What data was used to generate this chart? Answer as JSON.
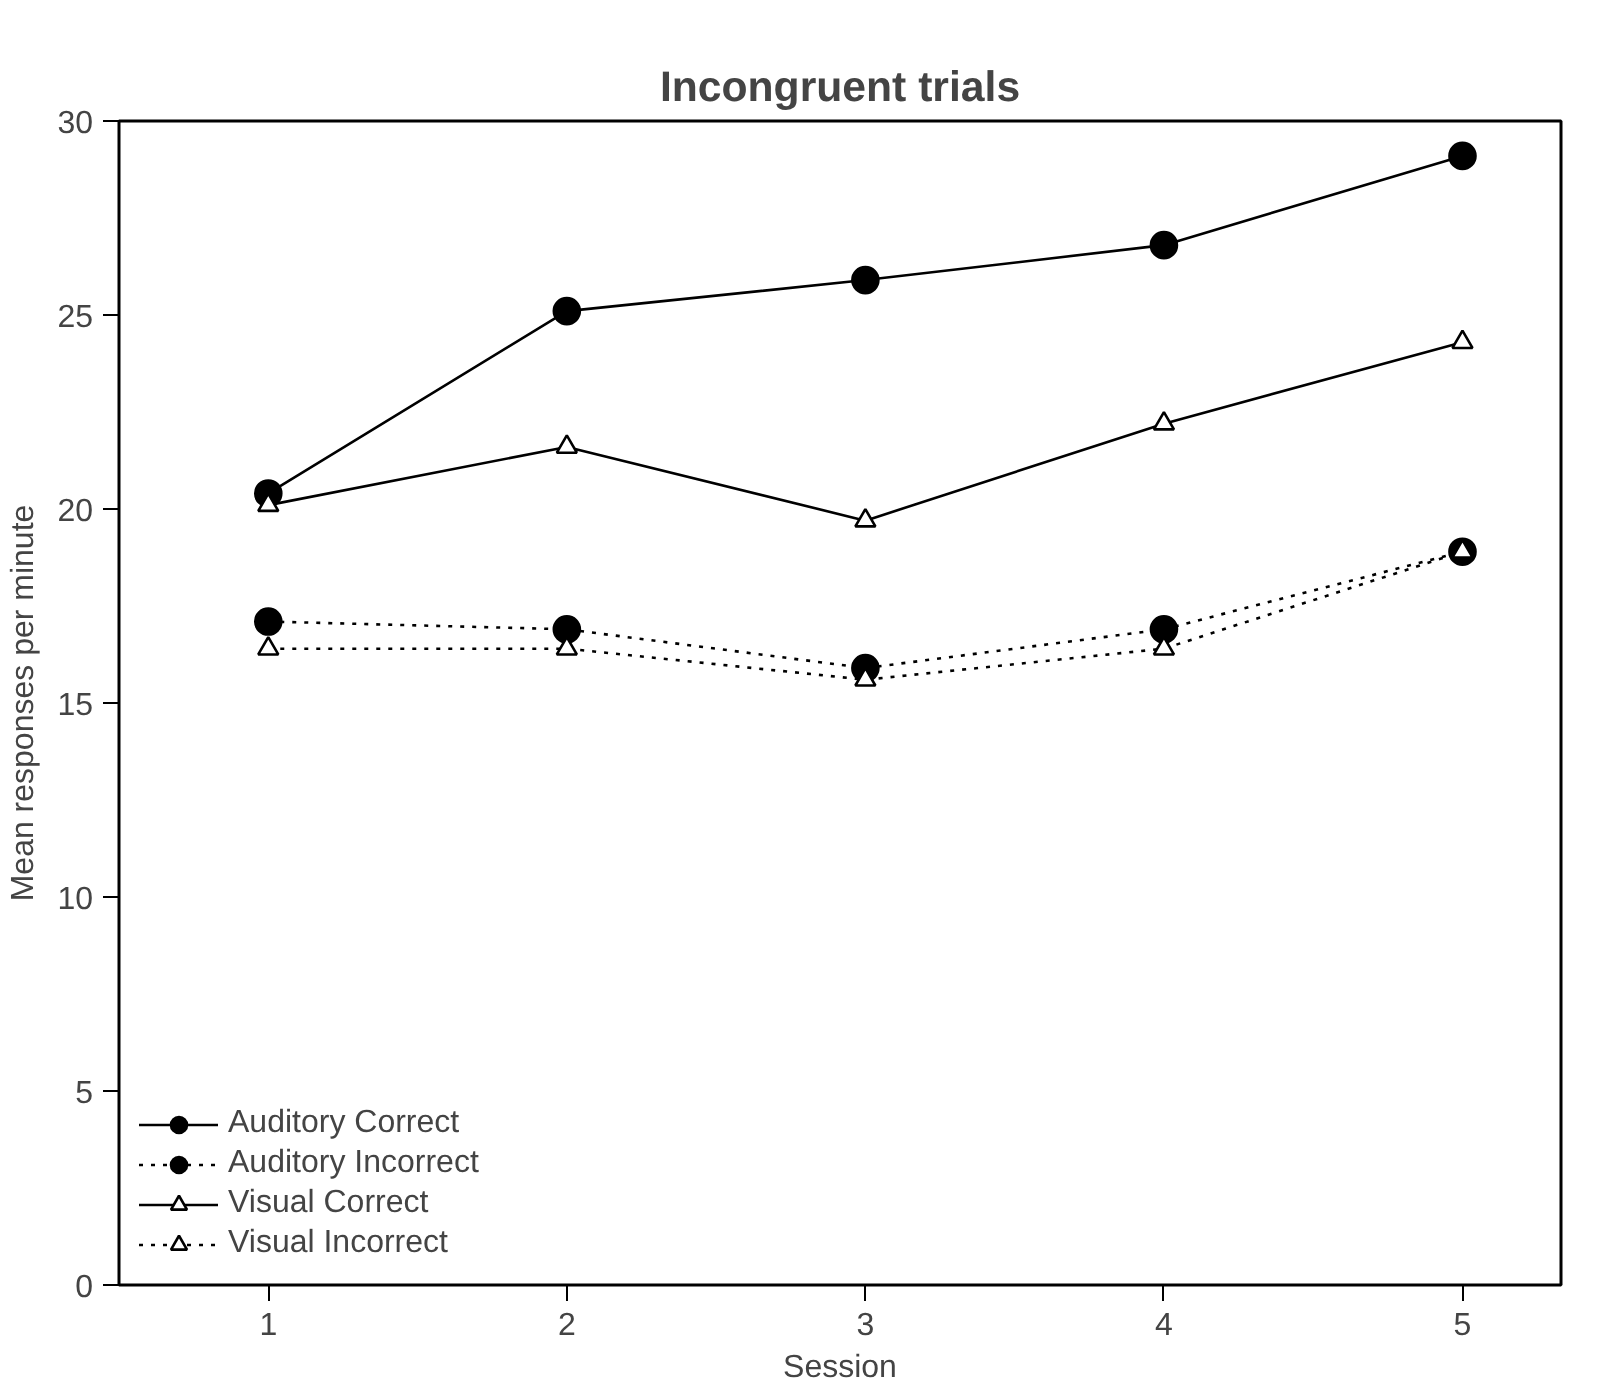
{
  "chart_data": {
    "type": "line",
    "title": "Incongruent trials",
    "xlabel": "Session",
    "ylabel": "Mean responses per minute",
    "x": [
      1,
      2,
      3,
      4,
      5
    ],
    "xlim": [
      0.5,
      5.33
    ],
    "xticks": [
      1,
      2,
      3,
      4,
      5
    ],
    "ylim": [
      0,
      30
    ],
    "yticks": [
      0,
      5,
      10,
      15,
      20,
      25,
      30
    ],
    "grid": false,
    "legend": "bottom left",
    "series": [
      {
        "name": "Auditory Correct",
        "color": "#000000",
        "marker": "circle",
        "line_style": "solid",
        "values": [
          20.4,
          25.1,
          25.9,
          26.8,
          29.1
        ]
      },
      {
        "name": "Auditory Incorrect",
        "color": "#000000",
        "marker": "circle",
        "line_style": "dotted",
        "values": [
          17.1,
          16.9,
          15.9,
          16.9,
          18.9
        ]
      },
      {
        "name": "Visual Correct",
        "color": "#000000",
        "marker": "triangle",
        "line_style": "solid",
        "values": [
          20.1,
          21.6,
          19.7,
          22.2,
          24.3
        ]
      },
      {
        "name": "Visual Incorrect",
        "color": "#000000",
        "marker": "triangle",
        "line_style": "dotted",
        "values": [
          16.4,
          16.4,
          15.6,
          16.4,
          18.9
        ]
      }
    ]
  }
}
